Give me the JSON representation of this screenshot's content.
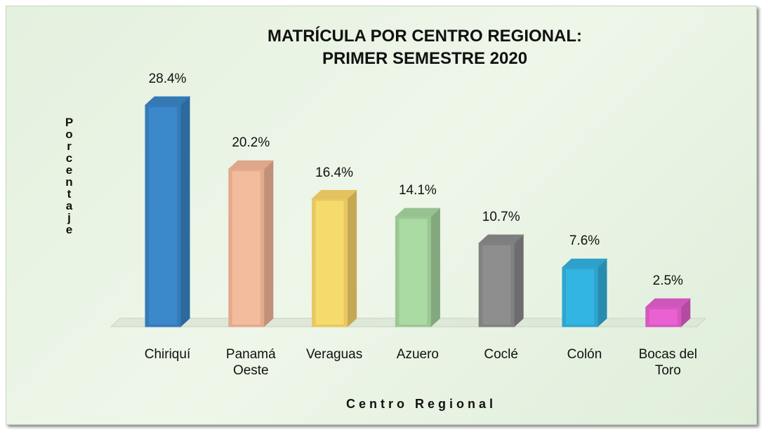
{
  "chart_data": {
    "type": "bar3d",
    "title": "MATRÍCULA POR CENTRO REGIONAL:\nPRIMER SEMESTRE 2020",
    "y_label": "Porcentaje",
    "x_label": "Centro Regional",
    "categories": [
      "Chiriquí",
      "Panamá\nOeste",
      "Veraguas",
      "Azuero",
      "Coclé",
      "Colón",
      "Bocas del\nToro"
    ],
    "values": [
      28.4,
      20.2,
      16.4,
      14.1,
      10.7,
      7.6,
      2.5
    ],
    "value_labels": [
      "28.4%",
      "20.2%",
      "16.4%",
      "14.1%",
      "10.7%",
      "7.6%",
      "2.5%"
    ],
    "colors": [
      "#3a86c8",
      "#f7b99a",
      "#fcd86a",
      "#a8d8a0",
      "#8c8c8c",
      "#33b3e0",
      "#e660d0"
    ]
  }
}
